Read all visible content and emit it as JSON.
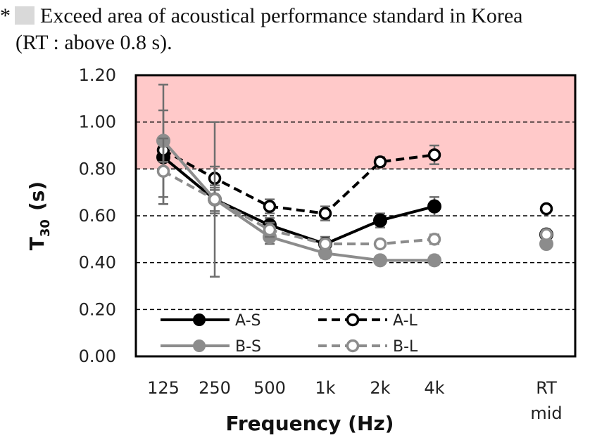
{
  "note": {
    "marker": "*",
    "line1": "Exceed area of acoustical performance standard in Korea",
    "line2": "(RT : above 0.8 s)."
  },
  "chart_data": {
    "type": "line",
    "categories": [
      "125",
      "250",
      "500",
      "1k",
      "2k",
      "4k"
    ],
    "extra_category": [
      "RT",
      "mid"
    ],
    "xlabel": "Frequency (Hz)",
    "ylabel_main": "T",
    "ylabel_sub": "30",
    "ylabel_unit": "(s)",
    "ylim": [
      0,
      1.2
    ],
    "yticks": [
      "0.00",
      "0.20",
      "0.40",
      "0.60",
      "0.80",
      "1.00",
      "1.20"
    ],
    "grid": "dashed horizontal",
    "exceed_region": {
      "from": 0.8,
      "to": 1.2,
      "color": "#ffc9c9"
    },
    "legend_position": "lower-left",
    "series": [
      {
        "name": "A-S",
        "values": [
          0.85,
          0.67,
          0.56,
          0.48,
          0.58,
          0.64
        ],
        "err": [
          0.2,
          0.06,
          0.03,
          0.03,
          0.03,
          0.04
        ],
        "rt_mid": 0.52,
        "color": "#000000",
        "dash": false,
        "filled": true
      },
      {
        "name": "A-L",
        "values": [
          0.88,
          0.76,
          0.64,
          0.61,
          0.83,
          0.86
        ],
        "err": [
          0.05,
          0.05,
          0.03,
          0.03,
          0.02,
          0.04
        ],
        "rt_mid": 0.63,
        "color": "#000000",
        "dash": true,
        "filled": false
      },
      {
        "name": "B-S",
        "values": [
          0.92,
          0.67,
          0.51,
          0.44,
          0.41,
          0.41
        ],
        "err": [
          0.24,
          0.33,
          0.03,
          0.02,
          0.01,
          0.02
        ],
        "rt_mid": 0.48,
        "color": "#8c8c8c",
        "dash": false,
        "filled": true
      },
      {
        "name": "B-L",
        "values": [
          0.79,
          0.67,
          0.54,
          0.48,
          0.48,
          0.5
        ],
        "err": [
          0.14,
          0.05,
          0.03,
          0.02,
          0.01,
          0.02
        ],
        "rt_mid": 0.52,
        "color": "#8c8c8c",
        "dash": true,
        "filled": false
      }
    ]
  }
}
